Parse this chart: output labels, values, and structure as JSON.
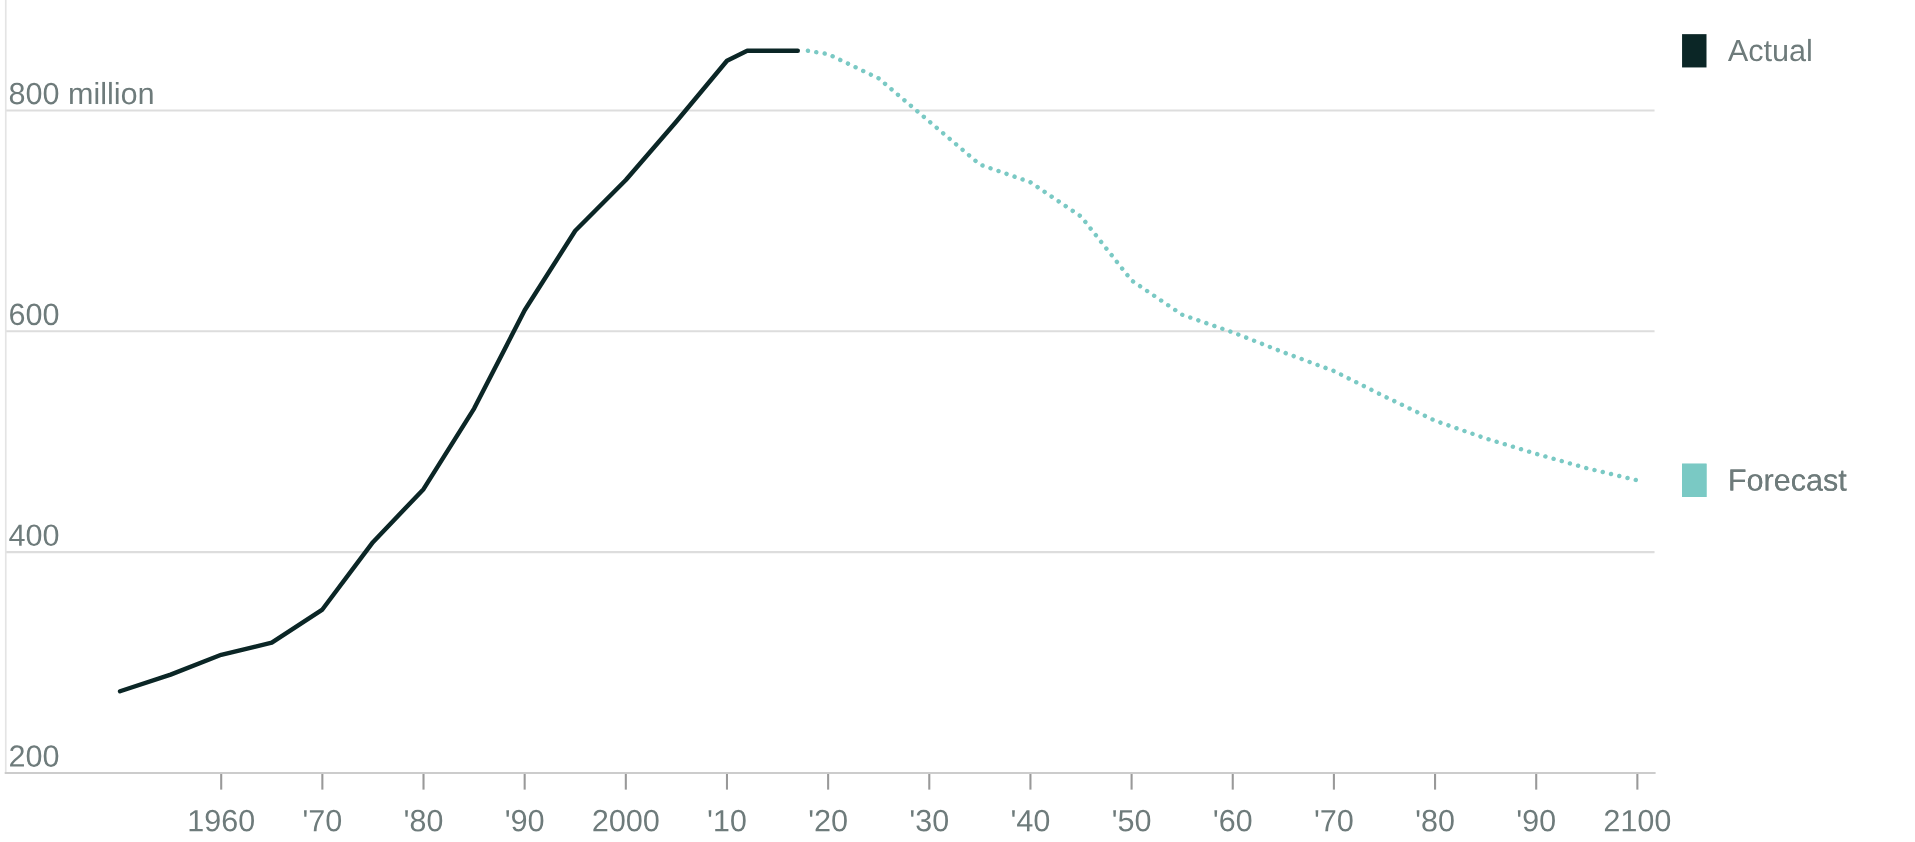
{
  "chart_data": {
    "type": "line",
    "xlim": [
      1938.7,
      2101.7
    ],
    "ylim": [
      200,
      900
    ],
    "xticks": [
      {
        "value": 1960,
        "label": "1960"
      },
      {
        "value": 1970,
        "label": "'70"
      },
      {
        "value": 1980,
        "label": "'80"
      },
      {
        "value": 1990,
        "label": "'90"
      },
      {
        "value": 2000,
        "label": "2000"
      },
      {
        "value": 2010,
        "label": "'10"
      },
      {
        "value": 2020,
        "label": "'20"
      },
      {
        "value": 2030,
        "label": "'30"
      },
      {
        "value": 2040,
        "label": "'40"
      },
      {
        "value": 2050,
        "label": "'50"
      },
      {
        "value": 2060,
        "label": "'60"
      },
      {
        "value": 2070,
        "label": "'70"
      },
      {
        "value": 2080,
        "label": "'80"
      },
      {
        "value": 2090,
        "label": "'90"
      },
      {
        "value": 2100,
        "label": "2100"
      }
    ],
    "yticks": [
      200,
      400,
      600,
      {
        "value": 800,
        "label": "800 million"
      }
    ],
    "grid": "y",
    "legend": "right",
    "series": [
      {
        "name": "Actual",
        "color": "#0b2626",
        "line_style": "solid",
        "x": [
          1950,
          1955,
          1960,
          1965,
          1970,
          1975,
          1980,
          1985,
          1990,
          1995,
          2000,
          2005,
          2010,
          2012,
          2017
        ],
        "values": [
          274,
          289,
          307,
          318,
          348,
          409,
          457,
          530,
          619,
          691,
          737,
          790,
          845,
          854,
          854
        ]
      },
      {
        "name": "Forecast",
        "color": "#7ac9c4",
        "line_style": "dotted",
        "x": [
          2018,
          2020,
          2025,
          2030,
          2035,
          2040,
          2045,
          2050,
          2055,
          2060,
          2065,
          2070,
          2075,
          2080,
          2085,
          2090,
          2095,
          2100
        ],
        "values": [
          854,
          851,
          829,
          790,
          751,
          735,
          704,
          646,
          615,
          599,
          581,
          564,
          541,
          519,
          503,
          489,
          476,
          465
        ]
      }
    ]
  }
}
